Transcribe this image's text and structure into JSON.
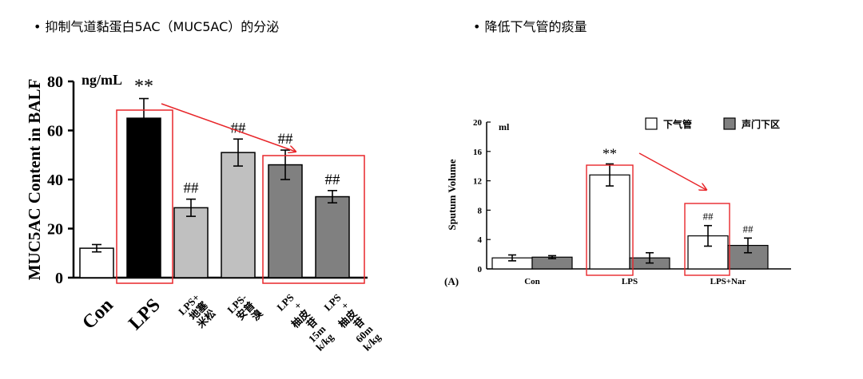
{
  "headings": {
    "left": "• 抑制气道黏蛋白5AC（MUC5AC）的分泌",
    "right": "• 降低下气管的痰量"
  },
  "chart_data": [
    {
      "type": "bar",
      "unit": "ng/mL",
      "ylabel": "MUC5AC Content in BALF",
      "ylim": [
        0,
        80
      ],
      "yticks": [
        0,
        20,
        40,
        60,
        80
      ],
      "categories": [
        "Con",
        "LPS",
        "LPS+\n地塞\n米松",
        "LPS-\n安普\n溴",
        "LPS\n+\n柚皮\n苷\n15m\nk/kg",
        "LPS\n+\n柚皮\n苷\n60m\nk/kg"
      ],
      "values": [
        12,
        65,
        28.5,
        51,
        46,
        33
      ],
      "errors": [
        1.5,
        8,
        3.5,
        5.5,
        6,
        2.5
      ],
      "bar_colors": [
        "#ffffff",
        "#000000",
        "#c0c0c0",
        "#c0c0c0",
        "#808080",
        "#808080"
      ],
      "annotations": [
        "",
        "**",
        "##",
        "##",
        "##",
        "##"
      ]
    },
    {
      "type": "bar",
      "panel": "(A)",
      "unit": "ml",
      "ylabel": "Sputum Volume",
      "ylim": [
        0,
        20
      ],
      "yticks": [
        0,
        4,
        8,
        12,
        16,
        20
      ],
      "categories": [
        "Con",
        "LPS",
        "LPS+Nar"
      ],
      "series": [
        {
          "name": "下气管",
          "values": [
            1.5,
            12.8,
            4.5
          ],
          "errors": [
            0.4,
            1.5,
            1.4
          ],
          "color": "#ffffff",
          "annotations": [
            "",
            "**",
            "##"
          ]
        },
        {
          "name": "声门下区",
          "values": [
            1.6,
            1.5,
            3.2
          ],
          "errors": [
            0.2,
            0.7,
            1.0
          ],
          "color": "#808080",
          "annotations": [
            "",
            "",
            "##"
          ]
        }
      ],
      "legend": "top-right"
    }
  ]
}
